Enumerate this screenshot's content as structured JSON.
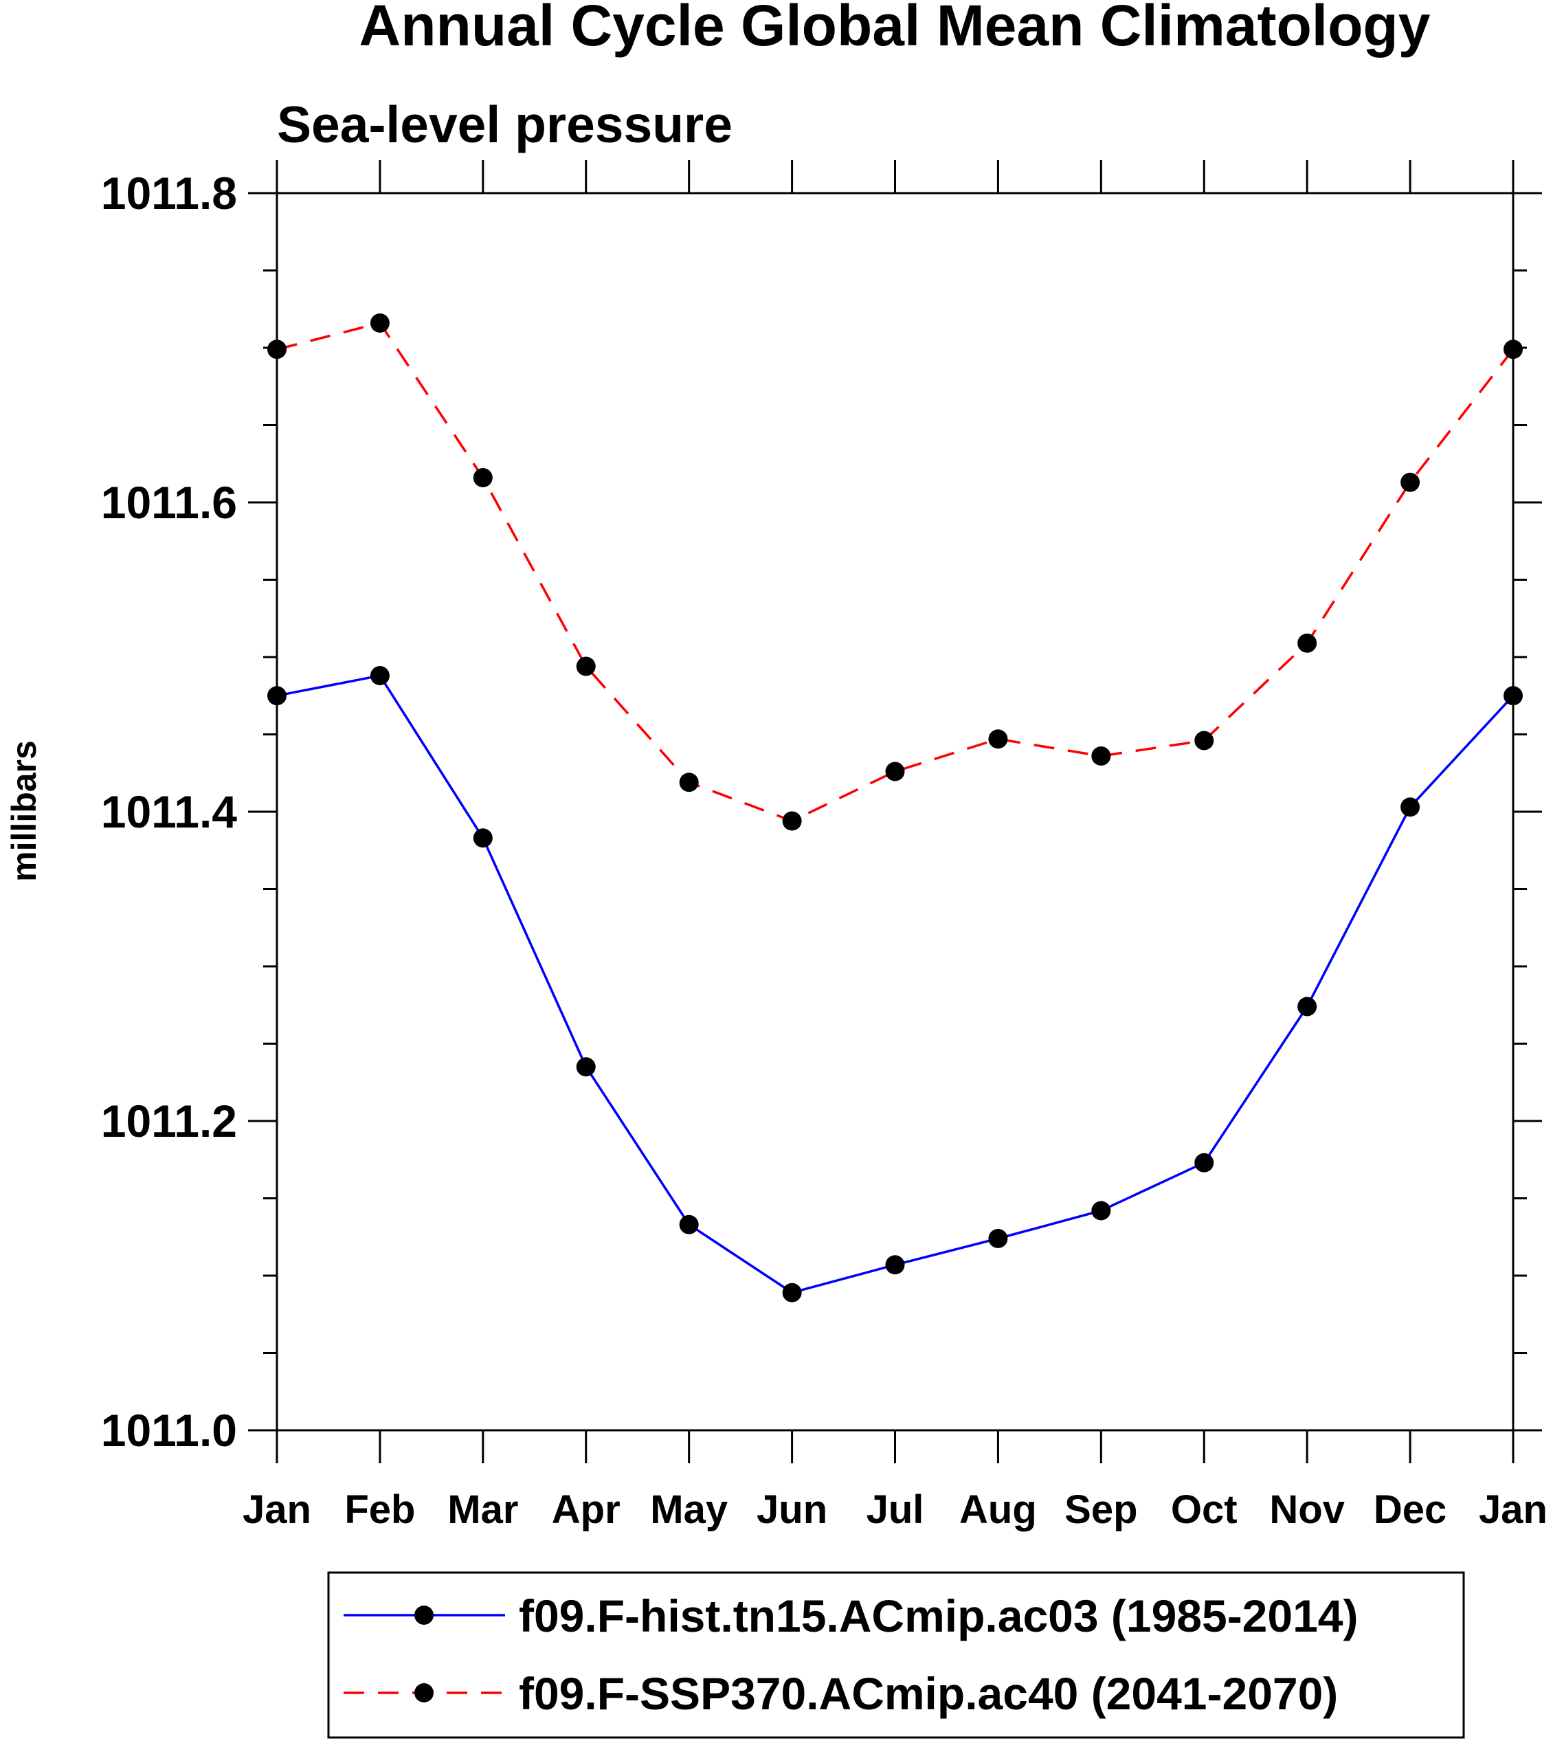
{
  "chart_data": {
    "type": "line",
    "title": "Annual Cycle Global Mean Climatology",
    "subtitle": "Sea-level pressure",
    "xlabel": "",
    "ylabel": "millibars",
    "categories": [
      "Jan",
      "Feb",
      "Mar",
      "Apr",
      "May",
      "Jun",
      "Jul",
      "Aug",
      "Sep",
      "Oct",
      "Nov",
      "Dec",
      "Jan"
    ],
    "ylim": [
      1011.0,
      1011.8
    ],
    "yticks": [
      "1011.0",
      "1011.2",
      "1011.4",
      "1011.6",
      "1011.8"
    ],
    "ytick_values": [
      1011.0,
      1011.2,
      1011.4,
      1011.6,
      1011.8
    ],
    "yminor_step": 0.05,
    "grid": false,
    "legend_position": "bottom",
    "series": [
      {
        "name": "f09.F-hist.tn15.ACmip.ac03 (1985-2014)",
        "color": "#0000ff",
        "dash": "solid",
        "marker": "filled-circle",
        "values": [
          1011.475,
          1011.488,
          1011.383,
          1011.235,
          1011.133,
          1011.089,
          1011.107,
          1011.124,
          1011.142,
          1011.173,
          1011.274,
          1011.403,
          1011.475
        ]
      },
      {
        "name": "f09.F-SSP370.ACmip.ac40 (2041-2070)",
        "color": "#ff0000",
        "dash": "dashed",
        "marker": "filled-circle",
        "values": [
          1011.699,
          1011.716,
          1011.616,
          1011.494,
          1011.419,
          1011.394,
          1011.426,
          1011.447,
          1011.436,
          1011.446,
          1011.509,
          1011.613,
          1011.699
        ]
      }
    ]
  }
}
